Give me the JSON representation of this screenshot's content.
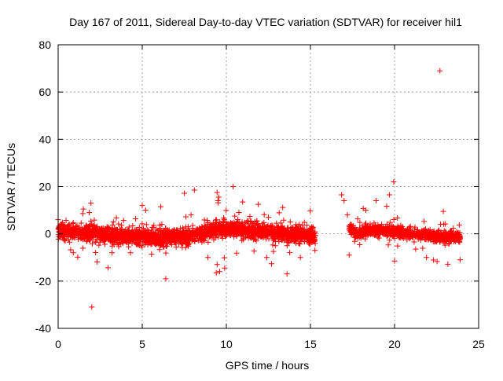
{
  "chart_data": {
    "type": "scatter",
    "title": "Day 167 of 2011, Sidereal Day-to-day VTEC variation (SDTVAR) for receiver hil1",
    "xlabel": "GPS time / hours",
    "ylabel": "SDTVAR / TECUs",
    "xlim": [
      0,
      25
    ],
    "ylim": [
      -40,
      80
    ],
    "xticks": [
      0,
      5,
      10,
      15,
      20,
      25
    ],
    "yticks": [
      -40,
      -20,
      0,
      20,
      40,
      60,
      80
    ],
    "grid": true,
    "marker": "+",
    "color": "#ff0000",
    "segments": [
      {
        "name": "band-1",
        "x_start": 0.0,
        "x_end": 15.3,
        "spread": 3.0,
        "center": [
          [
            0,
            1.0
          ],
          [
            2,
            0.2
          ],
          [
            4,
            -1.0
          ],
          [
            6,
            -1.5
          ],
          [
            8,
            -1.0
          ],
          [
            9.5,
            2.0
          ],
          [
            11,
            2.0
          ],
          [
            13,
            0.5
          ],
          [
            15.3,
            -1.0
          ]
        ]
      },
      {
        "name": "band-2",
        "x_start": 17.3,
        "x_end": 23.9,
        "spread": 2.0,
        "center": [
          [
            17.3,
            2.5
          ],
          [
            17.8,
            0.0
          ],
          [
            18.5,
            2.0
          ],
          [
            20,
            1.0
          ],
          [
            21,
            0.0
          ],
          [
            22,
            -0.5
          ],
          [
            22.5,
            -1.5
          ],
          [
            23.9,
            -1.5
          ]
        ]
      }
    ],
    "outliers": [
      {
        "x": 2.0,
        "y": -31
      },
      {
        "x": 22.7,
        "y": 69
      },
      {
        "x": 8.1,
        "y": 18.5
      },
      {
        "x": 19.95,
        "y": 22
      },
      {
        "x": 19.7,
        "y": 16.5
      },
      {
        "x": 16.85,
        "y": 16.5
      },
      {
        "x": 17.0,
        "y": 14
      },
      {
        "x": 6.4,
        "y": -19
      },
      {
        "x": 9.6,
        "y": -16
      },
      {
        "x": 9.4,
        "y": -16.5
      },
      {
        "x": 9.45,
        "y": 17.5
      },
      {
        "x": 9.55,
        "y": 15.5
      },
      {
        "x": 9.5,
        "y": 14
      },
      {
        "x": 9.45,
        "y": -13
      },
      {
        "x": 9.9,
        "y": -14.5
      },
      {
        "x": 1.95,
        "y": 13
      },
      {
        "x": 1.85,
        "y": 9
      },
      {
        "x": 1.5,
        "y": 10.5
      },
      {
        "x": 5.0,
        "y": 12
      },
      {
        "x": 5.2,
        "y": 10
      },
      {
        "x": 6.1,
        "y": 11.5
      },
      {
        "x": 11.9,
        "y": 12.5
      },
      {
        "x": 12.5,
        "y": 7
      },
      {
        "x": 10.5,
        "y": 7.5
      },
      {
        "x": 13.8,
        "y": 5
      },
      {
        "x": 14.4,
        "y": -10
      },
      {
        "x": 12.4,
        "y": -10
      },
      {
        "x": 17.3,
        "y": -9
      },
      {
        "x": 18.3,
        "y": 10
      },
      {
        "x": 18.9,
        "y": 14
      },
      {
        "x": 20.0,
        "y": -11.5
      },
      {
        "x": 22.9,
        "y": 9.5
      },
      {
        "x": 23.9,
        "y": -11
      },
      {
        "x": 0.0,
        "y": 6
      },
      {
        "x": 0.9,
        "y": -8
      },
      {
        "x": 3.2,
        "y": -8
      },
      {
        "x": 4.3,
        "y": -8
      },
      {
        "x": 8.9,
        "y": -10
      },
      {
        "x": 7.9,
        "y": 8
      },
      {
        "x": 21.9,
        "y": -10
      },
      {
        "x": 17.2,
        "y": 8
      }
    ]
  }
}
